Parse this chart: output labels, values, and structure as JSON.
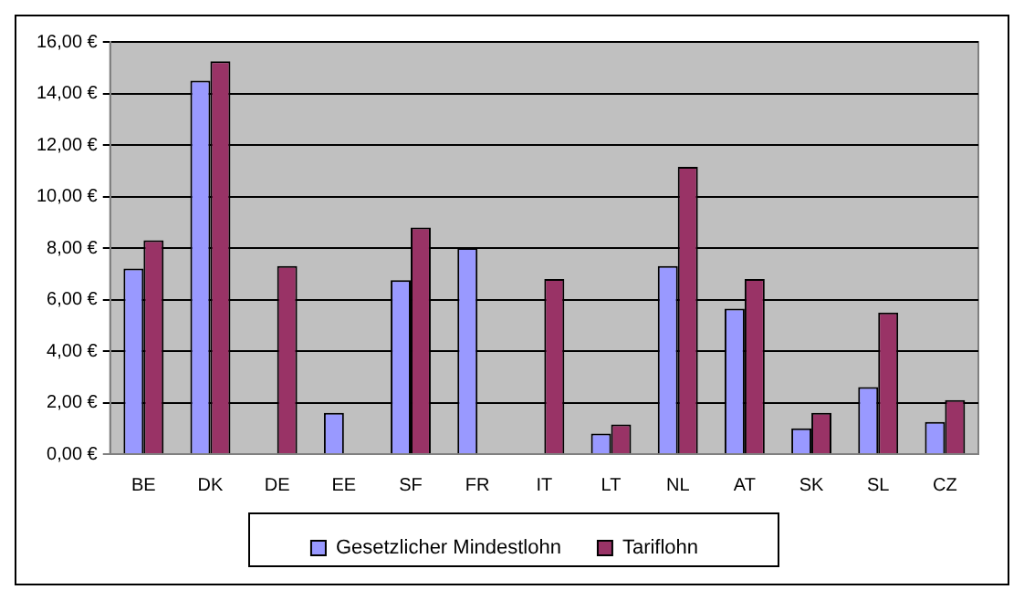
{
  "chart_data": {
    "type": "bar",
    "categories": [
      "BE",
      "DK",
      "DE",
      "EE",
      "SF",
      "FR",
      "IT",
      "LT",
      "NL",
      "AT",
      "SK",
      "SL",
      "CZ"
    ],
    "series": [
      {
        "name": "Gesetzlicher Mindestlohn",
        "color": "#9999ff",
        "values": [
          7.2,
          14.5,
          null,
          1.6,
          6.75,
          8.0,
          null,
          0.8,
          7.3,
          5.65,
          1.0,
          2.6,
          1.25
        ]
      },
      {
        "name": "Tariflohn",
        "color": "#993366",
        "values": [
          8.3,
          15.25,
          7.3,
          null,
          8.8,
          null,
          6.8,
          1.15,
          11.15,
          6.8,
          1.6,
          5.5,
          2.1
        ]
      }
    ],
    "ylim": [
      0,
      16
    ],
    "yticks": [
      {
        "value": 0,
        "label": "0,00 €"
      },
      {
        "value": 2,
        "label": "2,00 €"
      },
      {
        "value": 4,
        "label": "4,00 €"
      },
      {
        "value": 6,
        "label": "6,00 €"
      },
      {
        "value": 8,
        "label": "8,00 €"
      },
      {
        "value": 10,
        "label": "10,00 €"
      },
      {
        "value": 12,
        "label": "12,00 €"
      },
      {
        "value": 14,
        "label": "14,00 €"
      },
      {
        "value": 16,
        "label": "16,00 €"
      }
    ],
    "grid": "y",
    "legend": "bottom"
  }
}
